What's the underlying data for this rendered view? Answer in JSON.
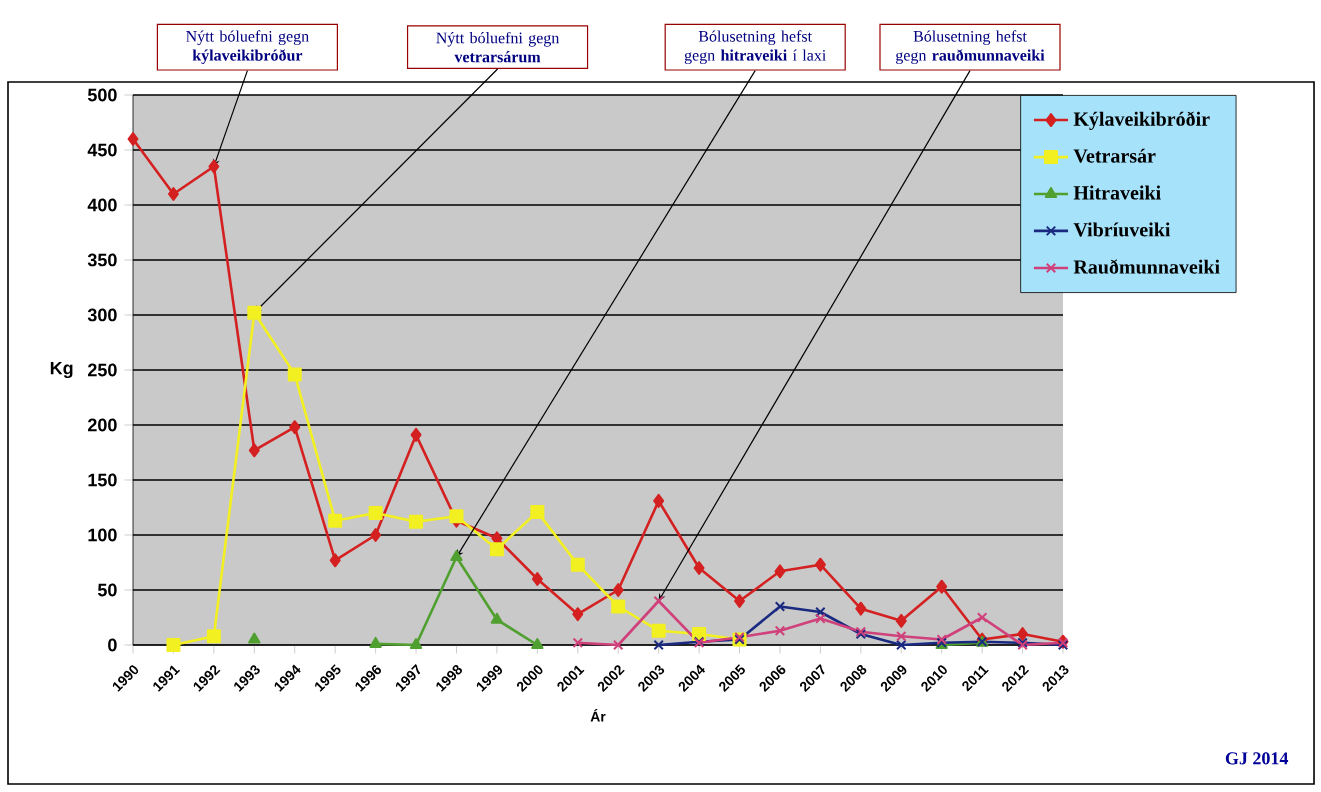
{
  "chart_data": {
    "type": "line",
    "xlabel": "Ár",
    "ylabel": "Kg",
    "categories": [
      "1990",
      "1991",
      "1992",
      "1993",
      "1994",
      "1995",
      "1996",
      "1997",
      "1998",
      "1999",
      "2000",
      "2001",
      "2002",
      "2003",
      "2004",
      "2005",
      "2006",
      "2007",
      "2008",
      "2009",
      "2010",
      "2011",
      "2012",
      "2013"
    ],
    "series": [
      {
        "name": "Kýlaveikibróðir",
        "color": "#d42020",
        "marker": "diamond",
        "values": [
          460,
          410,
          435,
          177,
          198,
          77,
          100,
          191,
          113,
          97,
          60,
          28,
          50,
          131,
          70,
          40,
          67,
          73,
          33,
          22,
          53,
          5,
          10,
          3
        ]
      },
      {
        "name": "Vetrarsár",
        "color": "#f2f020",
        "marker": "square",
        "values": [
          null,
          0,
          8,
          302,
          246,
          113,
          120,
          112,
          117,
          87,
          121,
          73,
          35,
          13,
          10,
          5,
          null,
          null,
          null,
          null,
          null,
          null,
          null,
          null
        ]
      },
      {
        "name": "Hitraveiki",
        "color": "#50a030",
        "marker": "triangle",
        "values": [
          null,
          null,
          null,
          5,
          null,
          null,
          1,
          0,
          80,
          23,
          0,
          null,
          null,
          null,
          null,
          null,
          null,
          null,
          null,
          null,
          0,
          2,
          null,
          null
        ]
      },
      {
        "name": "Vibríuveiki",
        "color": "#1a2a80",
        "marker": "cross",
        "values": [
          null,
          null,
          null,
          null,
          null,
          null,
          null,
          null,
          null,
          null,
          null,
          null,
          null,
          0,
          3,
          5,
          35,
          30,
          10,
          0,
          2,
          3,
          2,
          0
        ]
      },
      {
        "name": "Rauðmunnaveiki",
        "color": "#d0407a",
        "marker": "cross",
        "values": [
          null,
          null,
          null,
          null,
          null,
          null,
          null,
          null,
          null,
          null,
          null,
          2,
          0,
          40,
          2,
          7,
          13,
          24,
          12,
          8,
          5,
          25,
          0,
          2
        ]
      }
    ],
    "ylim": [
      0,
      500
    ],
    "yticks": [
      0,
      50,
      100,
      150,
      200,
      250,
      300,
      350,
      400,
      450,
      500
    ],
    "grid": "y",
    "legend": "top right",
    "annotations": [
      {
        "text": "Nýtt bóluefni gegn **kýlaveikibróður**",
        "x": "1992",
        "y": 435
      },
      {
        "text": "Nýtt bóluefni gegn **vetrarsárum**",
        "x": "1993",
        "y": 302
      },
      {
        "text": "Bólusetning hefst gegn **hitraveiki** í laxi",
        "x": "1998",
        "y": 80
      },
      {
        "text": "Bólusetning hefst gegn **rauðmunnaveiki**",
        "x": "2003",
        "y": 40
      },
      "GJ 2014"
    ]
  }
}
